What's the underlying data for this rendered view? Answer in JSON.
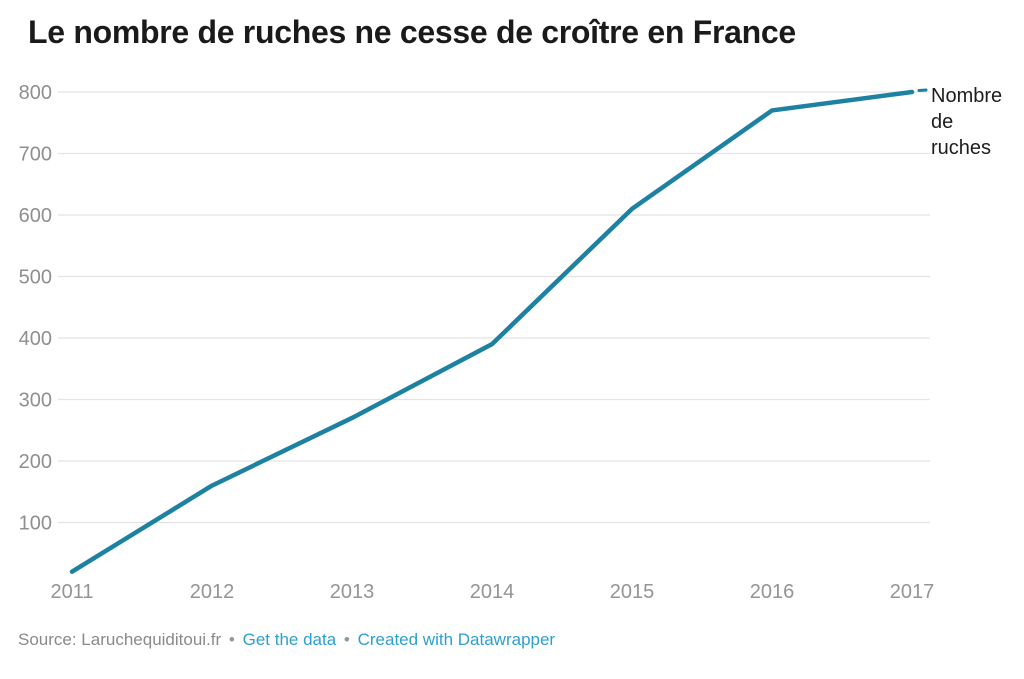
{
  "title": "Le nombre de ruches ne cesse de croître en France",
  "chart_data": {
    "type": "line",
    "x": [
      "2011",
      "2012",
      "2013",
      "2014",
      "2015",
      "2016",
      "2017"
    ],
    "series": [
      {
        "name": "Nombre de ruches",
        "values": [
          20,
          160,
          270,
          390,
          610,
          770,
          800
        ]
      }
    ],
    "ylim": [
      0,
      800
    ],
    "yticks": [
      100,
      200,
      300,
      400,
      500,
      600,
      700,
      800
    ],
    "grid": "horizontal",
    "legend_position": "end-of-line-label",
    "line_color": "#1d81a2",
    "annotation": {
      "text": "Nombre de ruches",
      "lines": [
        "Nombre",
        "de",
        "ruches"
      ]
    }
  },
  "footer": {
    "source_text": "Source: Laruchequiditoui.fr",
    "separator": "•",
    "links": [
      {
        "label": "Get the data"
      },
      {
        "label": "Created with Datawrapper"
      }
    ]
  }
}
